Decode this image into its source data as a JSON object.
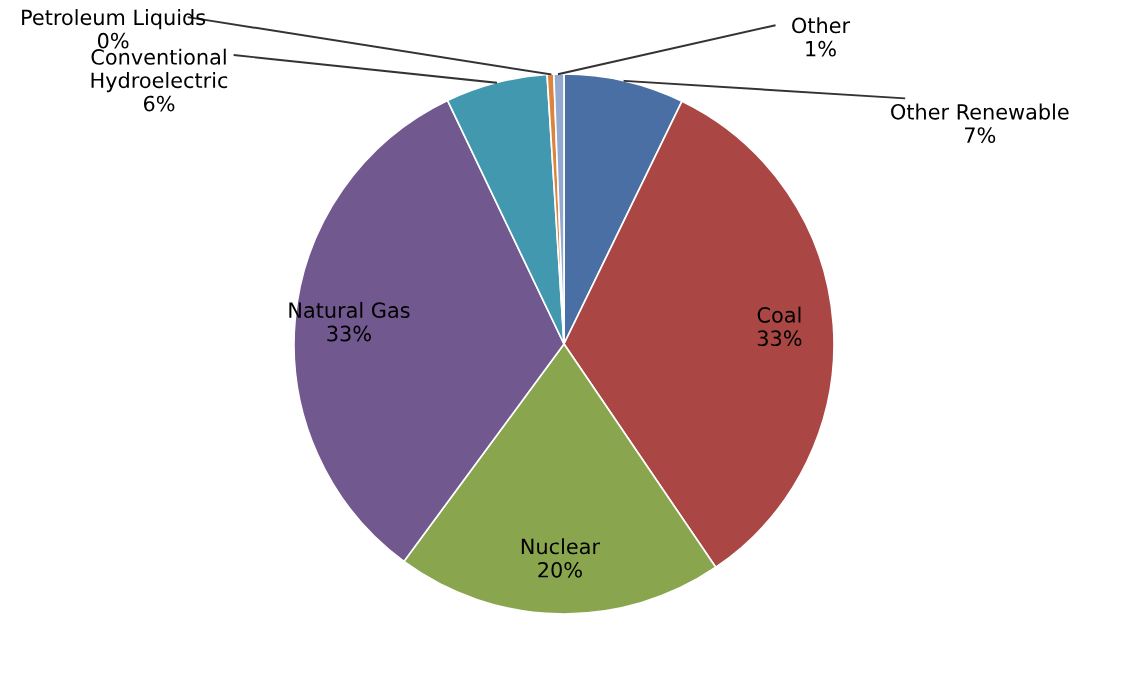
{
  "chart_data": {
    "type": "pie",
    "categories": [
      "Other Renewable",
      "Coal",
      "Nuclear",
      "Natural Gas",
      "Conventional Hydroelectric",
      "Petroleum Liquids",
      "Other"
    ],
    "values": [
      7.2,
      33.3,
      19.6,
      32.8,
      6.1,
      0.4,
      0.6
    ],
    "value_labels": [
      "7%",
      "33%",
      "20%",
      "33%",
      "6%",
      "0%",
      "1%"
    ],
    "colors": [
      "#4a6fa5",
      "#aa4643",
      "#89a54e",
      "#71588f",
      "#4198af",
      "#db843d",
      "#93a9cf"
    ]
  }
}
